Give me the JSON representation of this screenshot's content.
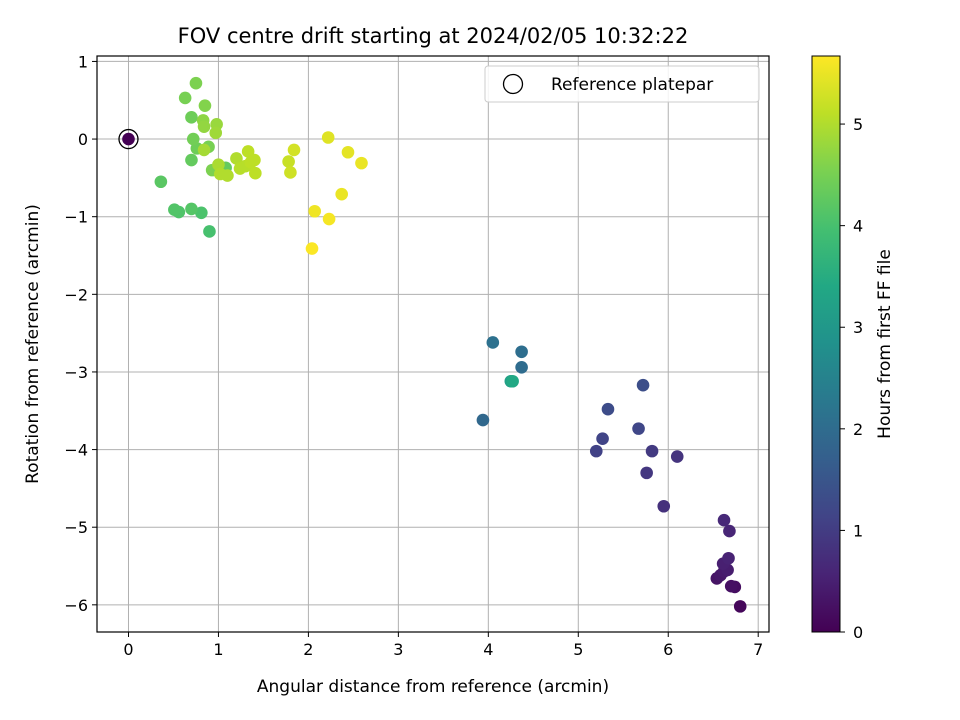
{
  "chart_data": {
    "type": "scatter",
    "title": "FOV centre drift starting at 2024/02/05 10:32:22",
    "xlabel": "Angular distance from reference (arcmin)",
    "ylabel": "Rotation from reference (arcmin)",
    "xlim": [
      -0.35,
      7.12
    ],
    "ylim": [
      -6.35,
      1.07
    ],
    "xticks": [
      0,
      1,
      2,
      3,
      4,
      5,
      6,
      7
    ],
    "yticks": [
      1,
      0,
      -1,
      -2,
      -3,
      -4,
      -5,
      -6
    ],
    "grid": true,
    "legend": {
      "position": "top-right",
      "entries": [
        "Reference platepar"
      ]
    },
    "reference_point": {
      "x": 0,
      "y": 0,
      "c": 0
    },
    "colorbar": {
      "label": "Hours from first FF file",
      "range": [
        0,
        5.67
      ],
      "ticks": [
        0,
        1,
        2,
        3,
        4,
        5
      ],
      "colormap": "viridis"
    },
    "points": [
      {
        "x": 6.8,
        "y": -6.02,
        "c": 0.1
      },
      {
        "x": 6.74,
        "y": -5.77,
        "c": 0.2
      },
      {
        "x": 6.7,
        "y": -5.76,
        "c": 0.25
      },
      {
        "x": 6.54,
        "y": -5.66,
        "c": 0.3
      },
      {
        "x": 6.58,
        "y": -5.62,
        "c": 0.35
      },
      {
        "x": 6.62,
        "y": -5.57,
        "c": 0.4
      },
      {
        "x": 6.66,
        "y": -5.55,
        "c": 0.45
      },
      {
        "x": 6.61,
        "y": -5.47,
        "c": 0.5
      },
      {
        "x": 6.67,
        "y": -5.4,
        "c": 0.55
      },
      {
        "x": 6.68,
        "y": -5.05,
        "c": 0.6
      },
      {
        "x": 6.62,
        "y": -4.91,
        "c": 0.65
      },
      {
        "x": 5.95,
        "y": -4.73,
        "c": 0.8
      },
      {
        "x": 5.76,
        "y": -4.3,
        "c": 0.9
      },
      {
        "x": 6.1,
        "y": -4.09,
        "c": 0.85
      },
      {
        "x": 5.82,
        "y": -4.02,
        "c": 0.95
      },
      {
        "x": 5.2,
        "y": -4.02,
        "c": 1.1
      },
      {
        "x": 5.27,
        "y": -3.86,
        "c": 1.15
      },
      {
        "x": 5.67,
        "y": -3.73,
        "c": 1.2
      },
      {
        "x": 5.33,
        "y": -3.48,
        "c": 1.3
      },
      {
        "x": 5.72,
        "y": -3.17,
        "c": 1.35
      },
      {
        "x": 3.94,
        "y": -3.62,
        "c": 1.9
      },
      {
        "x": 4.37,
        "y": -2.94,
        "c": 2.0
      },
      {
        "x": 4.37,
        "y": -2.74,
        "c": 2.05
      },
      {
        "x": 4.05,
        "y": -2.62,
        "c": 2.1
      },
      {
        "x": 4.25,
        "y": -3.12,
        "c": 3.2
      },
      {
        "x": 4.27,
        "y": -3.12,
        "c": 3.4
      },
      {
        "x": 0.9,
        "y": -1.19,
        "c": 4.0
      },
      {
        "x": 0.81,
        "y": -0.95,
        "c": 4.05
      },
      {
        "x": 0.56,
        "y": -0.94,
        "c": 4.1
      },
      {
        "x": 0.51,
        "y": -0.91,
        "c": 4.12
      },
      {
        "x": 0.7,
        "y": -0.9,
        "c": 4.15
      },
      {
        "x": 0.36,
        "y": -0.55,
        "c": 4.2
      },
      {
        "x": 0.7,
        "y": -0.27,
        "c": 4.3
      },
      {
        "x": 0.76,
        "y": -0.12,
        "c": 4.4
      },
      {
        "x": 0.72,
        "y": 0.0,
        "c": 4.45
      },
      {
        "x": 0.89,
        "y": -0.1,
        "c": 4.5
      },
      {
        "x": 0.93,
        "y": -0.4,
        "c": 4.55
      },
      {
        "x": 1.08,
        "y": -0.37,
        "c": 4.3
      },
      {
        "x": 0.7,
        "y": 0.28,
        "c": 4.4
      },
      {
        "x": 0.63,
        "y": 0.53,
        "c": 4.5
      },
      {
        "x": 0.75,
        "y": 0.72,
        "c": 4.55
      },
      {
        "x": 0.85,
        "y": 0.43,
        "c": 4.6
      },
      {
        "x": 0.83,
        "y": 0.24,
        "c": 4.7
      },
      {
        "x": 0.84,
        "y": 0.16,
        "c": 4.75
      },
      {
        "x": 0.98,
        "y": 0.19,
        "c": 4.8
      },
      {
        "x": 0.97,
        "y": 0.08,
        "c": 4.85
      },
      {
        "x": 0.84,
        "y": -0.14,
        "c": 4.9
      },
      {
        "x": 1.0,
        "y": -0.33,
        "c": 4.95
      },
      {
        "x": 1.02,
        "y": -0.45,
        "c": 5.0
      },
      {
        "x": 1.1,
        "y": -0.47,
        "c": 5.0
      },
      {
        "x": 1.2,
        "y": -0.25,
        "c": 5.0
      },
      {
        "x": 1.24,
        "y": -0.38,
        "c": 5.05
      },
      {
        "x": 1.3,
        "y": -0.35,
        "c": 5.05
      },
      {
        "x": 1.33,
        "y": -0.16,
        "c": 5.1
      },
      {
        "x": 1.36,
        "y": -0.3,
        "c": 5.1
      },
      {
        "x": 1.4,
        "y": -0.27,
        "c": 5.1
      },
      {
        "x": 1.41,
        "y": -0.44,
        "c": 5.1
      },
      {
        "x": 1.78,
        "y": -0.29,
        "c": 5.2
      },
      {
        "x": 1.8,
        "y": -0.43,
        "c": 5.25
      },
      {
        "x": 1.84,
        "y": -0.14,
        "c": 5.3
      },
      {
        "x": 2.22,
        "y": 0.02,
        "c": 5.4
      },
      {
        "x": 2.44,
        "y": -0.17,
        "c": 5.45
      },
      {
        "x": 2.59,
        "y": -0.31,
        "c": 5.5
      },
      {
        "x": 2.37,
        "y": -0.71,
        "c": 5.5
      },
      {
        "x": 2.07,
        "y": -0.93,
        "c": 5.55
      },
      {
        "x": 2.23,
        "y": -1.03,
        "c": 5.6
      },
      {
        "x": 2.04,
        "y": -1.41,
        "c": 5.65
      }
    ]
  }
}
